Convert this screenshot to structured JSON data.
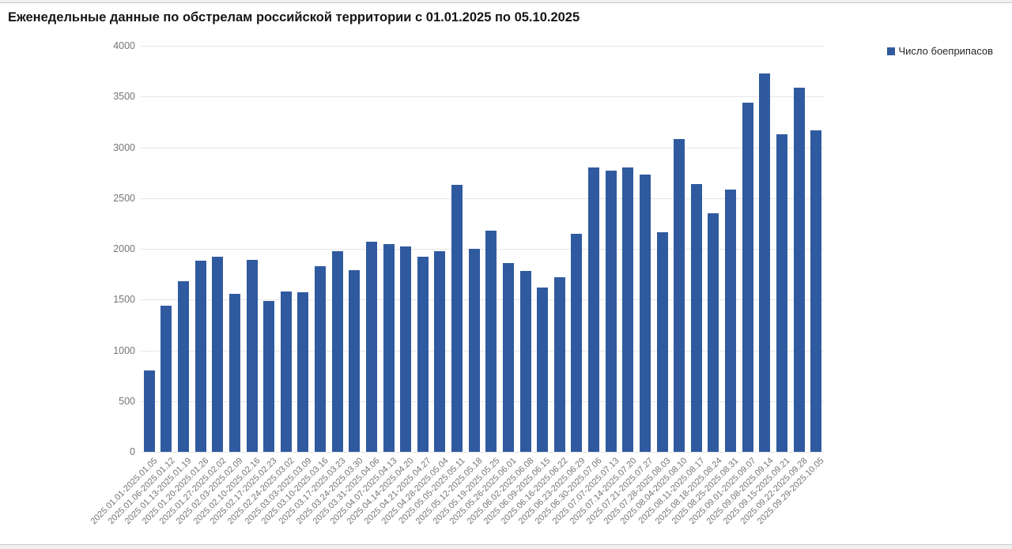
{
  "title": "Еженедельные данные по обстрелам российской территории с 01.01.2025 по 05.10.2025",
  "legend": {
    "label": "Число боеприпасов",
    "color": "#305a9f"
  },
  "chart_data": {
    "type": "bar",
    "title": "Еженедельные данные по обстрелам российской территории с 01.01.2025 по 05.10.2025",
    "series_name": "Число боеприпасов",
    "bar_color": "#305a9f",
    "grid": "horizontal",
    "legend_position": "top-right",
    "ylim": [
      0,
      4000
    ],
    "ytick_step": 500,
    "yticks": [
      0,
      500,
      1000,
      1500,
      2000,
      2500,
      3000,
      3500,
      4000
    ],
    "categories": [
      "2025.01.01-2025.01.05",
      "2025.01.06-2025.01.12",
      "2025.01.13-2025.01.19",
      "2025.01.20-2025.01.26",
      "2025.01.27-2025.02.02",
      "2025.02.03-2025.02.09",
      "2025.02.10-2025.02.16",
      "2025.02.17-2025.02.23",
      "2025.02.24-2025.03.02",
      "2025.03.03-2025.03.09",
      "2025.03.10-2025.03.16",
      "2025.03.17-2025.03.23",
      "2025.03.24-2025.03.30",
      "2025.03.31-2025.04.06",
      "2025.04.07-2025.04.13",
      "2025.04.14-2025.04.20",
      "2025.04.21-2025.04.27",
      "2025.04.28-2025.05.04",
      "2025.05.05-2025.05.11",
      "2025.05.12-2025.05.18",
      "2025.05.19-2025.05.25",
      "2025.05.26-2025.06.01",
      "2025.06.02-2025.06.08",
      "2025.06.09-2025.06.15",
      "2025.06.16-2025.06.22",
      "2025.06.23-2025.06.29",
      "2025.06.30-2025.07.06",
      "2025.07.07-2025.07.13",
      "2025.07.14-2025.07.20",
      "2025.07.21-2025.07.27",
      "2025.07.28-2025.08.03",
      "2025.08.04-2025.08.10",
      "2025.08.11-2025.08.17",
      "2025.08.18-2025.08.24",
      "2025.08.25-2025.08.31",
      "2025.09.01-2025.09.07",
      "2025.09.08-2025.09.14",
      "2025.09.15-2025.09.21",
      "2025.09.22-2025.09.28",
      "2025.09.29-2025.10.05"
    ],
    "values": [
      800,
      1440,
      1680,
      1880,
      1920,
      1560,
      1890,
      1490,
      1580,
      1570,
      1830,
      1980,
      1790,
      2070,
      2050,
      2020,
      1920,
      1980,
      2630,
      2000,
      2180,
      1860,
      1780,
      1620,
      1720,
      2150,
      2800,
      2770,
      2800,
      2730,
      2160,
      3080,
      2640,
      2350,
      2580,
      3440,
      3730,
      3130,
      3590,
      3170
    ]
  }
}
